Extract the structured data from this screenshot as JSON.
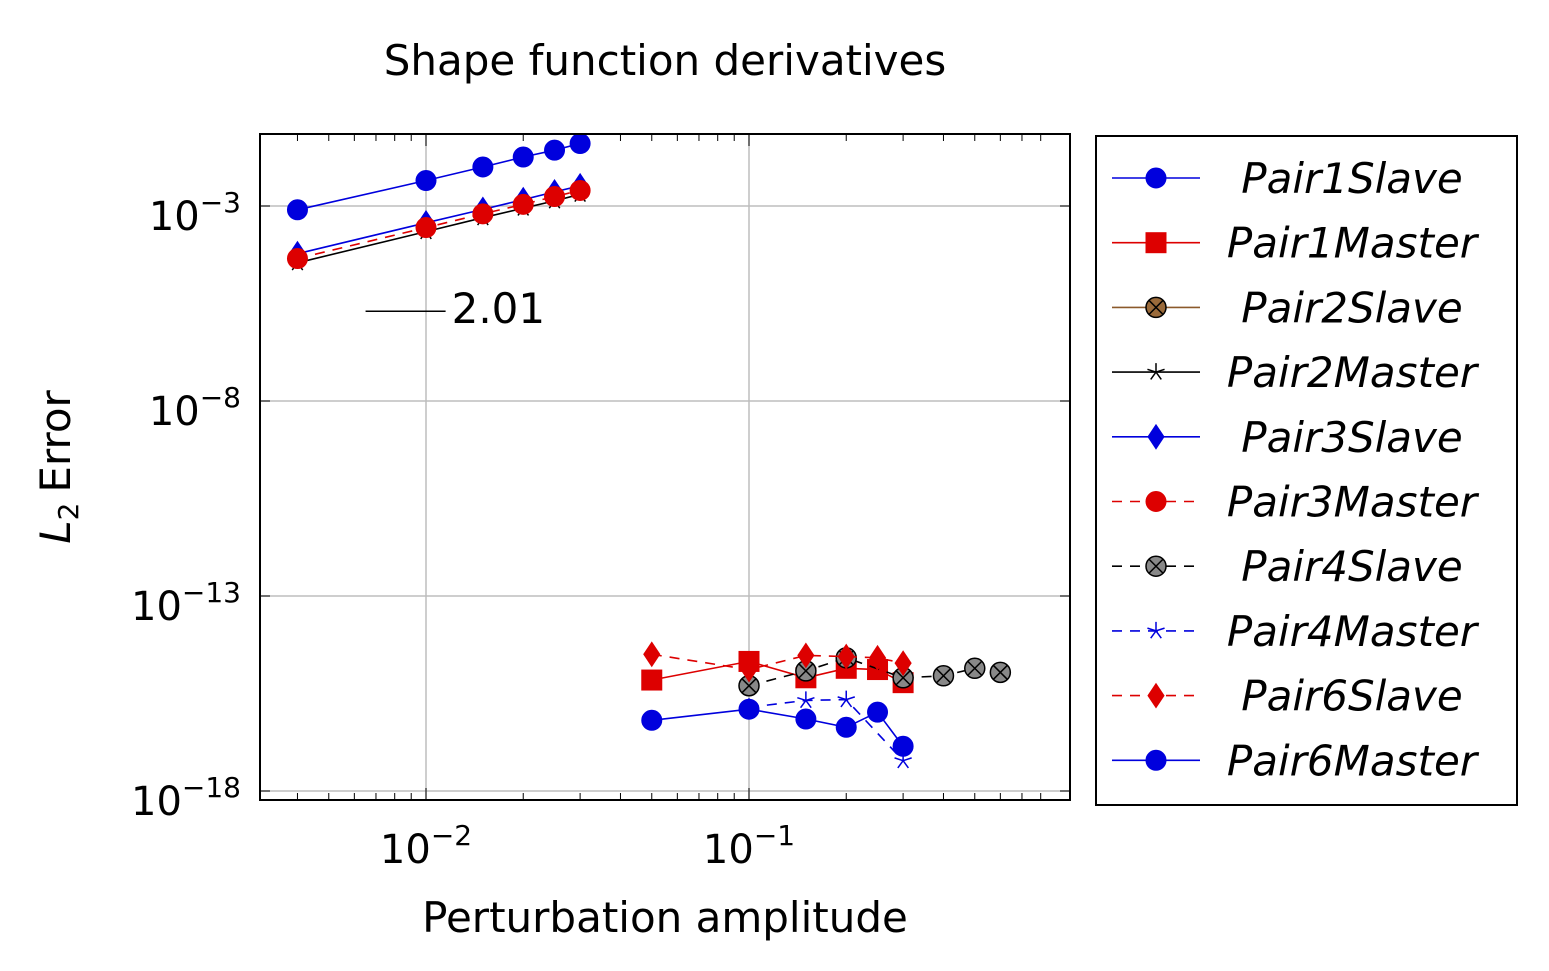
{
  "chart_data": {
    "type": "line",
    "title": "Shape function derivatives",
    "xlabel": "Perturbation amplitude",
    "ylabel": "Error",
    "ylabel_symbol": "L",
    "ylabel_subscript": "2",
    "xscale": "log",
    "yscale": "log",
    "xlim": [
      0.001,
      0.8
    ],
    "ylim": [
      1e-18,
      0.03
    ],
    "x_ticks": [
      {
        "value": 0.01,
        "base": "10",
        "exp": "−2"
      },
      {
        "value": 0.1,
        "base": "10",
        "exp": "−1"
      }
    ],
    "y_ticks": [
      {
        "value": 0.001,
        "base": "10",
        "exp": "−3"
      },
      {
        "value": 1e-08,
        "base": "10",
        "exp": "−8"
      },
      {
        "value": 1e-13,
        "base": "10",
        "exp": "−13"
      },
      {
        "value": 1e-18,
        "base": "10",
        "exp": "−18"
      }
    ],
    "grid": true,
    "legend_position": "outside-right",
    "annotation": {
      "text": "2.01",
      "x": 0.0115,
      "y": 2.3e-06
    },
    "slope_triangle": [
      [
        0.0065,
        2e-06
      ],
      [
        0.0115,
        2e-06
      ]
    ],
    "series": [
      {
        "name": "Pair1Slave",
        "color": "#0000dd",
        "dash": false,
        "marker": "circle",
        "points": [
          [
            0.004,
            0.0008
          ],
          [
            0.01,
            0.0045
          ],
          [
            0.015,
            0.01
          ],
          [
            0.02,
            0.018
          ],
          [
            0.025,
            0.027
          ],
          [
            0.03,
            0.04
          ]
        ]
      },
      {
        "name": "Pair1Master",
        "color": "#dd0000",
        "dash": false,
        "marker": "square",
        "points": [
          [
            0.05,
            7e-16
          ],
          [
            0.1,
            2.1e-15
          ],
          [
            0.15,
            8e-16
          ],
          [
            0.2,
            1.4e-15
          ],
          [
            0.25,
            1.3e-15
          ],
          [
            0.3,
            6e-16
          ]
        ]
      },
      {
        "name": "Pair2Slave",
        "color": "#8B5A2B",
        "dash": false,
        "marker": "circle-x",
        "points": []
      },
      {
        "name": "Pair2Master",
        "color": "#000000",
        "dash": false,
        "marker": "star",
        "points": [
          [
            0.004,
            3.5e-05
          ],
          [
            0.01,
            0.00022
          ],
          [
            0.015,
            0.0005
          ],
          [
            0.02,
            0.00088
          ],
          [
            0.025,
            0.00135
          ],
          [
            0.03,
            0.002
          ]
        ]
      },
      {
        "name": "Pair3Slave",
        "color": "#0000dd",
        "dash": false,
        "marker": "diamond",
        "points": [
          [
            0.004,
            6e-05
          ],
          [
            0.01,
            0.00037
          ],
          [
            0.015,
            0.00082
          ],
          [
            0.02,
            0.00145
          ],
          [
            0.025,
            0.0023
          ],
          [
            0.03,
            0.0033
          ]
        ]
      },
      {
        "name": "Pair3Master",
        "color": "#dd0000",
        "dash": true,
        "marker": "circle",
        "points": [
          [
            0.004,
            4.5e-05
          ],
          [
            0.01,
            0.00028
          ],
          [
            0.015,
            0.00063
          ],
          [
            0.02,
            0.0011
          ],
          [
            0.025,
            0.00175
          ],
          [
            0.03,
            0.0025
          ]
        ]
      },
      {
        "name": "Pair4Slave",
        "color": "#000000",
        "dash": true,
        "marker": "circle-x",
        "fill": "#888888",
        "points": [
          [
            0.1,
            5e-16
          ],
          [
            0.15,
            1.2e-15
          ],
          [
            0.2,
            2.6e-15
          ],
          [
            0.3,
            8e-16
          ],
          [
            0.4,
            9e-16
          ],
          [
            0.5,
            1.4e-15
          ],
          [
            0.6,
            1.1e-15
          ]
        ]
      },
      {
        "name": "Pair4Master",
        "color": "#0000dd",
        "dash": true,
        "marker": "star",
        "points": [
          [
            0.1,
            1.4e-16
          ],
          [
            0.15,
            2.1e-16
          ],
          [
            0.2,
            2.2e-16
          ],
          [
            0.3,
            6e-18
          ]
        ]
      },
      {
        "name": "Pair6Slave",
        "color": "#dd0000",
        "dash": true,
        "marker": "diamond",
        "points": [
          [
            0.05,
            3.2e-15
          ],
          [
            0.1,
            1.3e-15
          ],
          [
            0.15,
            3e-15
          ],
          [
            0.2,
            2.8e-15
          ],
          [
            0.25,
            2.6e-15
          ],
          [
            0.3,
            1.9e-15
          ]
        ]
      },
      {
        "name": "Pair6Master",
        "color": "#0000dd",
        "dash": false,
        "marker": "circle",
        "points": [
          [
            0.05,
            6.5e-17
          ],
          [
            0.1,
            1.25e-16
          ],
          [
            0.15,
            7e-17
          ],
          [
            0.2,
            4.3e-17
          ],
          [
            0.25,
            1.05e-16
          ],
          [
            0.3,
            1.4e-17
          ]
        ]
      }
    ]
  }
}
